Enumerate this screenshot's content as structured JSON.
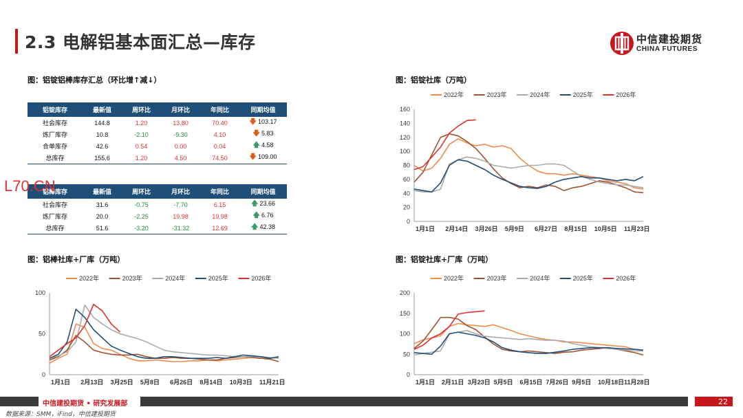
{
  "header": {
    "title": "2.3 电解铝基本面汇总—库存",
    "logo_cn": "中信建投期货",
    "logo_en": "CHINA FUTURES"
  },
  "colors": {
    "accent": "#c8161d",
    "table_header": "#1f4e79",
    "up": "#e03030",
    "down": "#1b8f3a",
    "s2022": "#f08a4b",
    "s2023": "#a0522d",
    "s2024": "#aaaaaa",
    "s2025": "#1f4e79",
    "s2026": "#e03030"
  },
  "table_caption": "图：铝锭铝棒库存汇总（环比增↑减↓）",
  "table1": {
    "headers": [
      "铝锭库存",
      "最新值",
      "周环比",
      "月环比",
      "年同比",
      "同期均值"
    ],
    "rows": [
      {
        "name": "社会库存",
        "latest": "144.8",
        "wow": "1.20",
        "mom": "13.80",
        "yoy": "70.40",
        "arrow": "down",
        "avg": "103.17"
      },
      {
        "name": "炼厂库存",
        "latest": "10.8",
        "wow": "-2.10",
        "mom": "-9.30",
        "yoy": "4.10",
        "arrow": "down",
        "avg": "5.83"
      },
      {
        "name": "合单库存",
        "latest": "42.6",
        "wow": "0.54",
        "mom": "0.00",
        "yoy": "0.04",
        "arrow": "up",
        "avg": "4.58"
      },
      {
        "name": "总库存",
        "latest": "155.6",
        "wow": "1.20",
        "mom": "4.50",
        "yoy": "74.50",
        "arrow": "down",
        "avg": "109.00"
      }
    ]
  },
  "table2": {
    "headers": [
      "铝棒库存",
      "最新值",
      "周环比",
      "月环比",
      "年同比",
      "同期均值"
    ],
    "rows": [
      {
        "name": "社会库存",
        "latest": "31.6",
        "wow": "-0.75",
        "mom": "-7.70",
        "yoy": "6.15",
        "arrow": "up",
        "avg": "23.66"
      },
      {
        "name": "炼厂库存",
        "latest": "20.0",
        "wow": "-2.25",
        "mom": "19.98",
        "yoy": "19.98",
        "arrow": "up",
        "avg": "6.76"
      },
      {
        "name": "总库存",
        "latest": "51.6",
        "wow": "-3.20",
        "mom": "-31.32",
        "yoy": "12.69",
        "arrow": "up",
        "avg": "42.38"
      }
    ]
  },
  "watermark": "L70.CN",
  "chart_data": [
    {
      "id": "c1",
      "type": "line",
      "title": "图：铝锭社库（万吨）",
      "ylim": [
        0,
        160
      ],
      "yticks": [
        0,
        20,
        40,
        60,
        80,
        100,
        120,
        140,
        160
      ],
      "xlabels": [
        "1月1日",
        "2月14日",
        "3月26日",
        "5月9日",
        "6月27日",
        "8月15日",
        "10月5日",
        "11月23日"
      ],
      "legend": [
        "2022年",
        "2023年",
        "2024年",
        "2025年",
        "2026年"
      ],
      "series": [
        {
          "name": "2022年",
          "values": [
            80,
            72,
            76,
            90,
            110,
            118,
            112,
            108,
            110,
            106,
            108,
            104,
            90,
            80,
            72,
            68,
            68,
            66,
            68,
            66,
            64,
            62,
            58,
            56,
            54,
            48,
            46
          ]
        },
        {
          "name": "2023年",
          "values": [
            56,
            70,
            95,
            120,
            125,
            122,
            114,
            104,
            90,
            75,
            62,
            54,
            48,
            50,
            48,
            52,
            50,
            44,
            48,
            50,
            54,
            58,
            56,
            52,
            48,
            42,
            41
          ]
        },
        {
          "name": "2024年",
          "values": [
            44,
            42,
            42,
            46,
            82,
            88,
            92,
            90,
            86,
            80,
            78,
            76,
            78,
            80,
            80,
            82,
            82,
            80,
            72,
            64,
            60,
            56,
            54,
            52,
            52,
            50,
            48
          ]
        },
        {
          "name": "2025年",
          "values": [
            46,
            44,
            42,
            55,
            80,
            88,
            86,
            80,
            74,
            66,
            60,
            55,
            50,
            48,
            47,
            50,
            56,
            60,
            62,
            64,
            62,
            62,
            60,
            58,
            60,
            58,
            64
          ]
        },
        {
          "name": "2026年",
          "values": [
            74,
            78,
            92,
            106,
            126,
            136,
            144,
            145
          ]
        }
      ]
    },
    {
      "id": "c2",
      "type": "line",
      "title": "图：铝棒社库+厂库（万吨）",
      "ylim": [
        0,
        100
      ],
      "yticks": [
        0,
        50,
        100
      ],
      "xlabels": [
        "1月1日",
        "2月13日",
        "3月25日",
        "5月8日",
        "6月26日",
        "8月14日",
        "10月3日",
        "11月21日"
      ],
      "legend": [
        "2022年",
        "2023年",
        "2024年",
        "2025年",
        "2026年"
      ],
      "series": [
        {
          "name": "2022年",
          "values": [
            14,
            20,
            25,
            62,
            58,
            38,
            32,
            30,
            25,
            20,
            17,
            17,
            18,
            17,
            16,
            16,
            17,
            17,
            18,
            17,
            18,
            19,
            20,
            21,
            20,
            20,
            21
          ]
        },
        {
          "name": "2023年",
          "values": [
            18,
            22,
            30,
            48,
            40,
            30,
            27,
            25,
            24,
            24,
            25,
            22,
            20,
            20,
            21,
            20,
            20,
            19,
            18,
            18,
            20,
            21,
            22,
            21,
            20,
            19,
            16
          ]
        },
        {
          "name": "2024年",
          "values": [
            20,
            23,
            28,
            40,
            85,
            70,
            62,
            55,
            50,
            47,
            44,
            40,
            35,
            30,
            28,
            27,
            26,
            25,
            24,
            24,
            23,
            22,
            22,
            22,
            22,
            21,
            20
          ]
        },
        {
          "name": "2025年",
          "values": [
            20,
            25,
            40,
            80,
            70,
            55,
            45,
            35,
            30,
            26,
            22,
            20,
            20,
            22,
            22,
            21,
            20,
            20,
            20,
            21,
            20,
            22,
            24,
            23,
            22,
            20,
            22
          ]
        },
        {
          "name": "2026年",
          "values": [
            22,
            30,
            38,
            45,
            60,
            86,
            78,
            62,
            52
          ]
        }
      ]
    },
    {
      "id": "c3",
      "type": "line",
      "title": "图：铝锭社库+厂库（万吨）",
      "ylim": [
        0,
        200
      ],
      "yticks": [
        0,
        50,
        100,
        150,
        200
      ],
      "xlabels": [
        "1月1日",
        "2月11日",
        "3月23日",
        "5月5日",
        "6月15日",
        "7月26日",
        "9月5日",
        "10月18日",
        "11月28日"
      ],
      "legend": [
        "2022年",
        "2023年",
        "2024年",
        "2025年",
        "2026年"
      ],
      "series": [
        {
          "name": "2022年",
          "values": [
            76,
            85,
            90,
            95,
            118,
            125,
            122,
            120,
            118,
            122,
            115,
            108,
            100,
            95,
            90,
            86,
            84,
            80,
            80,
            78,
            76,
            74,
            72,
            70,
            68,
            62,
            60
          ]
        },
        {
          "name": "2023年",
          "values": [
            64,
            82,
            110,
            140,
            140,
            136,
            120,
            110,
            92,
            75,
            62,
            58,
            56,
            58,
            56,
            54,
            52,
            55,
            56,
            60,
            62,
            64,
            66,
            62,
            58,
            54,
            48
          ]
        },
        {
          "name": "2024年",
          "values": [
            48,
            52,
            55,
            58,
            100,
            104,
            108,
            100,
            94,
            92,
            90,
            88,
            86,
            88,
            86,
            84,
            84,
            82,
            76,
            72,
            68,
            66,
            64,
            62,
            60,
            58,
            58
          ]
        },
        {
          "name": "2025年",
          "values": [
            54,
            52,
            50,
            70,
            100,
            104,
            100,
            96,
            90,
            80,
            66,
            60,
            56,
            54,
            52,
            52,
            55,
            58,
            62,
            64,
            66,
            66,
            66,
            64,
            63,
            62,
            60
          ]
        },
        {
          "name": "2026年",
          "values": [
            62,
            72,
            90,
            100,
            118,
            148,
            152,
            154,
            156
          ]
        }
      ]
    }
  ],
  "footer": {
    "org": "中信建投期货 • 研究发展部",
    "page": "22",
    "source": "数据来源：SMM，iFind，中信建投期货"
  }
}
